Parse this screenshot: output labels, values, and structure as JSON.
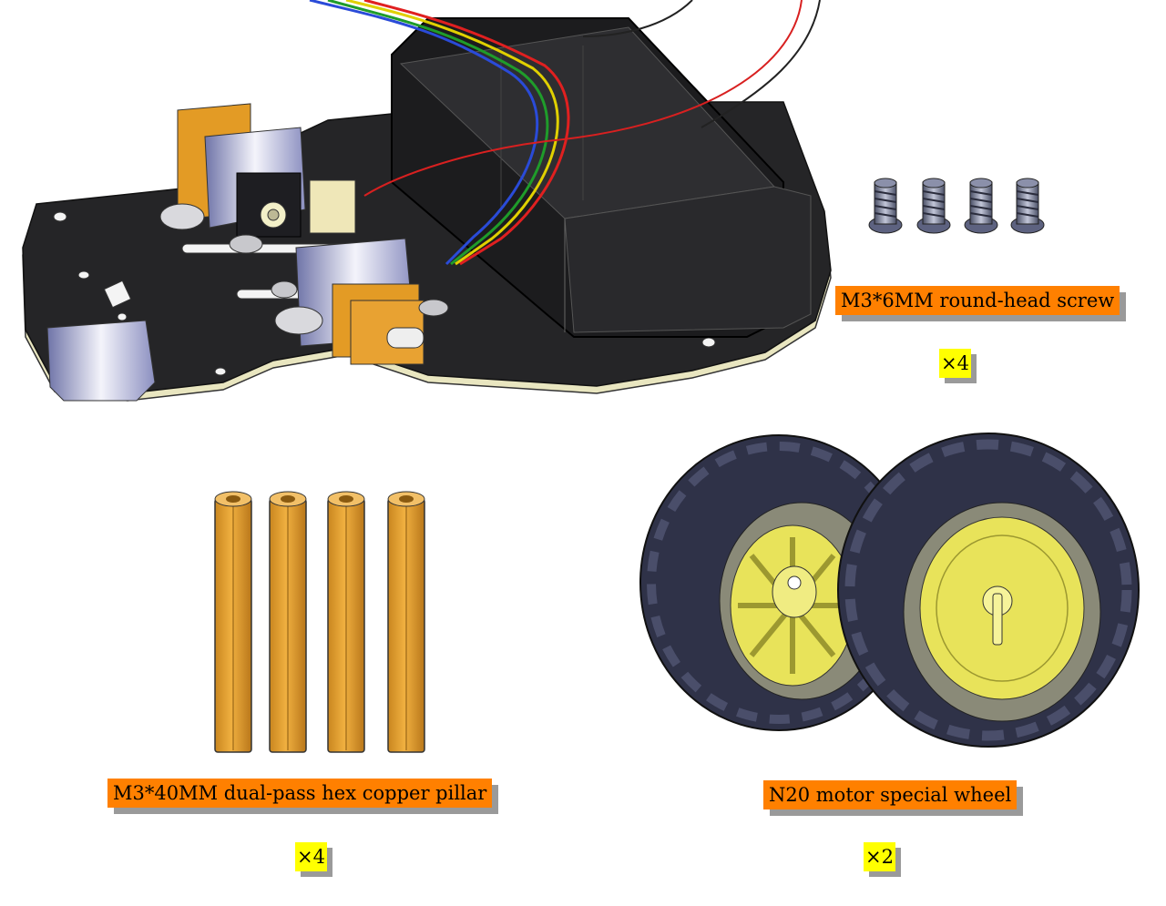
{
  "parts": [
    {
      "id": "screw",
      "label": "M3*6MM round-head screw",
      "quantity": "×4",
      "icon": "screw-icon"
    },
    {
      "id": "pillar",
      "label": "M3*40MM dual-pass hex copper pillar",
      "quantity": "×4",
      "icon": "hex-pillar-icon"
    },
    {
      "id": "wheel",
      "label": "N20 motor special wheel",
      "quantity": "×2",
      "icon": "wheel-icon"
    }
  ],
  "assembly": {
    "icon": "robot-car-chassis-icon"
  },
  "colors": {
    "label_bg": "#ff8000",
    "quantity_bg": "#ffff00",
    "copper": "#e8a330",
    "chassis": "#222222",
    "tire": "#2f3248",
    "hub": "#e8e35a"
  }
}
